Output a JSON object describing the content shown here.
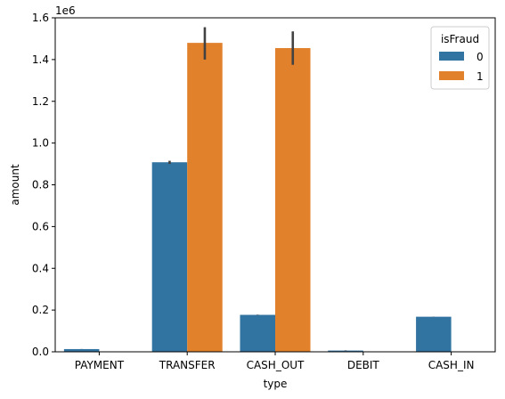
{
  "chart_data": {
    "type": "bar",
    "xlabel": "type",
    "ylabel": "amount",
    "y_offset_label": "1e6",
    "ylim": [
      0,
      1600000
    ],
    "yticks": [
      0,
      200000,
      400000,
      600000,
      800000,
      1000000,
      1200000,
      1400000,
      1600000
    ],
    "ytick_labels": [
      "0.0",
      "0.2",
      "0.4",
      "0.6",
      "0.8",
      "1.0",
      "1.2",
      "1.4",
      "1.6"
    ],
    "categories": [
      "PAYMENT",
      "TRANSFER",
      "CASH_OUT",
      "DEBIT",
      "CASH_IN"
    ],
    "legend": {
      "title": "isFraud",
      "position": "top-right"
    },
    "series": [
      {
        "name": "0",
        "color": "#3274a1",
        "values": [
          13000,
          908000,
          177000,
          6000,
          168000
        ],
        "err_low": [
          12800,
          900000,
          176000,
          5000,
          167500
        ],
        "err_high": [
          13200,
          915000,
          178000,
          7000,
          168500
        ]
      },
      {
        "name": "1",
        "color": "#e1812c",
        "values": [
          0,
          1480000,
          1455000,
          0,
          0
        ],
        "err_low": [
          0,
          1400000,
          1375000,
          0,
          0
        ],
        "err_high": [
          0,
          1555000,
          1535000,
          0,
          0
        ]
      }
    ],
    "grid": false
  }
}
